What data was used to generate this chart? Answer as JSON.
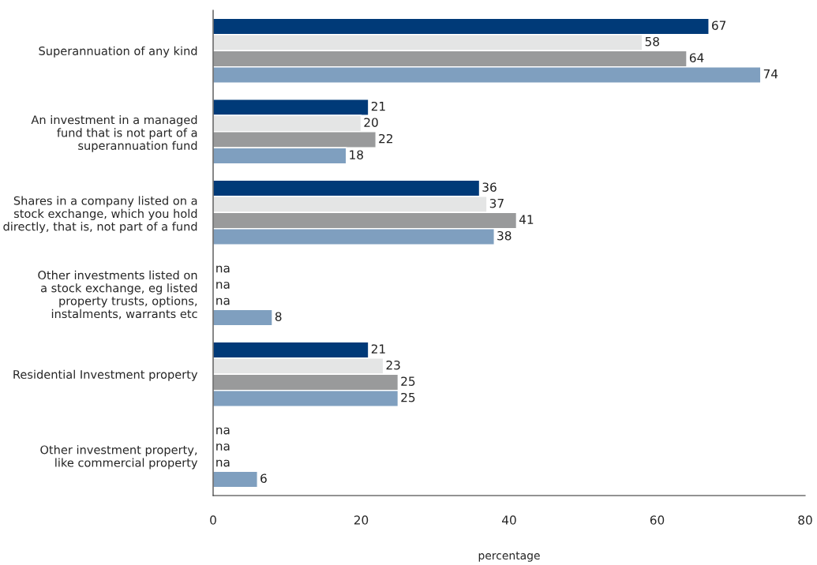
{
  "chart_data": {
    "type": "bar",
    "orientation": "horizontal",
    "categories": [
      "Superannuation of any kind",
      "An investment in a managed\nfund that is not part of a\nsuperannuation fund",
      "Shares in a company listed on a\nstock exchange, which you hold\ndirectly, that is, not part of a fund",
      "Other investments listed on\na stock exchange, eg listed\nproperty trusts, options,\ninstalments, warrants etc",
      "Residential Investment property",
      "Other investment property,\nlike commercial property"
    ],
    "series": [
      {
        "color": "#003a78",
        "values": [
          67,
          21,
          36,
          null,
          21,
          null
        ],
        "value_labels": [
          "67",
          "21",
          "36",
          "na",
          "21",
          "na"
        ]
      },
      {
        "color": "#e4e5e5",
        "values": [
          58,
          20,
          37,
          null,
          23,
          null
        ],
        "value_labels": [
          "58",
          "20",
          "37",
          "na",
          "23",
          "na"
        ]
      },
      {
        "color": "#999a9b",
        "values": [
          64,
          22,
          41,
          null,
          25,
          null
        ],
        "value_labels": [
          "64",
          "22",
          "41",
          "na",
          "25",
          "na"
        ]
      },
      {
        "color": "#7f9fbf",
        "values": [
          74,
          18,
          38,
          8,
          25,
          6
        ],
        "value_labels": [
          "74",
          "18",
          "38",
          "8",
          "25",
          "6"
        ]
      }
    ],
    "xlim": [
      0,
      80
    ],
    "xticks": [
      0,
      20,
      40,
      60,
      80
    ],
    "xlabel": "percentage",
    "grid": false,
    "legend": false
  }
}
